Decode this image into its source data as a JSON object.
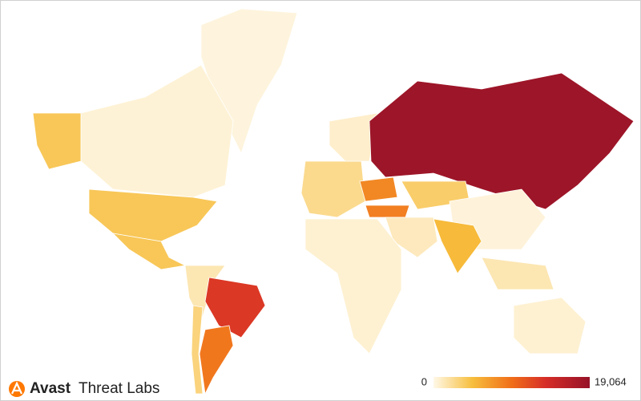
{
  "brand": {
    "name": "Avast",
    "product": "Threat Labs"
  },
  "chart_data": {
    "type": "choropleth",
    "values": [
      300,
      500,
      4000,
      4000,
      4000,
      1500,
      13000,
      9000,
      3000,
      2500,
      800,
      8000,
      8500,
      18500,
      3500,
      400,
      5000,
      1200,
      600,
      1500,
      600
    ],
    "range": [
      0,
      19064
    ],
    "ticks": [
      0,
      {
        "value": 19064,
        "label": "19,064"
      }
    ]
  }
}
